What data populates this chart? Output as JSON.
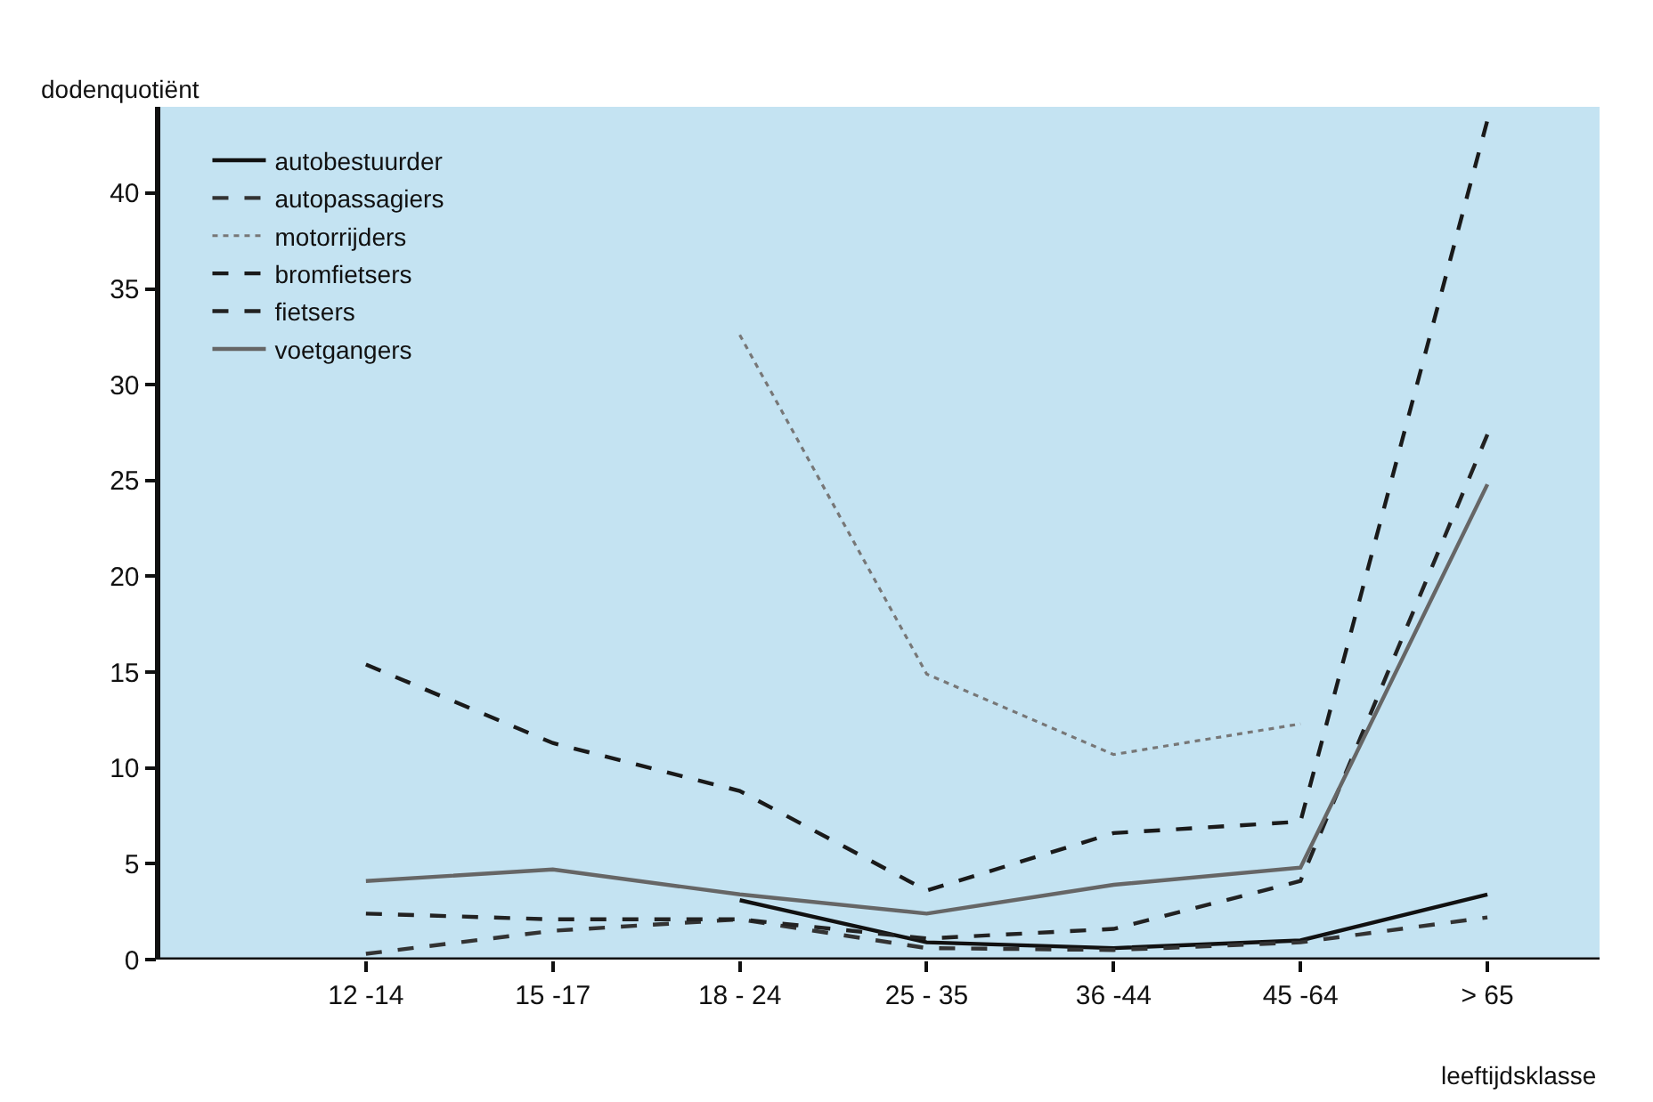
{
  "chart_data": {
    "type": "line",
    "xlabel": "leeftijdsklasse",
    "ylabel": "dodenquotiënt",
    "categories": [
      "12 -14",
      "15 -17",
      "18 - 24",
      "25 - 35",
      "36 -44",
      "45 -64",
      "> 65"
    ],
    "ylim": [
      0,
      44.5
    ],
    "yticks": [
      0,
      5,
      10,
      15,
      20,
      25,
      30,
      35,
      40
    ],
    "grid": false,
    "legend": "top left",
    "marker": "none",
    "series": [
      {
        "name": "autobestuurder",
        "color": "#111111",
        "line_style": "solid",
        "values": [
          null,
          null,
          3.1,
          0.9,
          0.6,
          1.0,
          3.4
        ]
      },
      {
        "name": "autopassagiers",
        "color": "#333333",
        "line_style": "dashed",
        "values": [
          0.3,
          1.5,
          2.1,
          0.6,
          0.5,
          0.9,
          2.2
        ]
      },
      {
        "name": "motorrijders",
        "color": "#777777",
        "line_style": "dotted",
        "values": [
          null,
          null,
          32.6,
          14.9,
          10.7,
          12.3,
          null
        ]
      },
      {
        "name": "bromfietsers",
        "color": "#1a1a1a",
        "line_style": "dashed",
        "values": [
          15.4,
          11.3,
          8.8,
          3.6,
          6.6,
          7.2,
          43.8
        ]
      },
      {
        "name": "fietsers",
        "color": "#222222",
        "line_style": "dashed",
        "values": [
          2.4,
          2.1,
          2.1,
          1.1,
          1.6,
          4.1,
          27.4
        ]
      },
      {
        "name": "voetgangers",
        "color": "#666666",
        "line_style": "solid",
        "values": [
          4.1,
          4.7,
          3.4,
          2.4,
          3.9,
          4.8,
          24.8
        ]
      }
    ]
  }
}
